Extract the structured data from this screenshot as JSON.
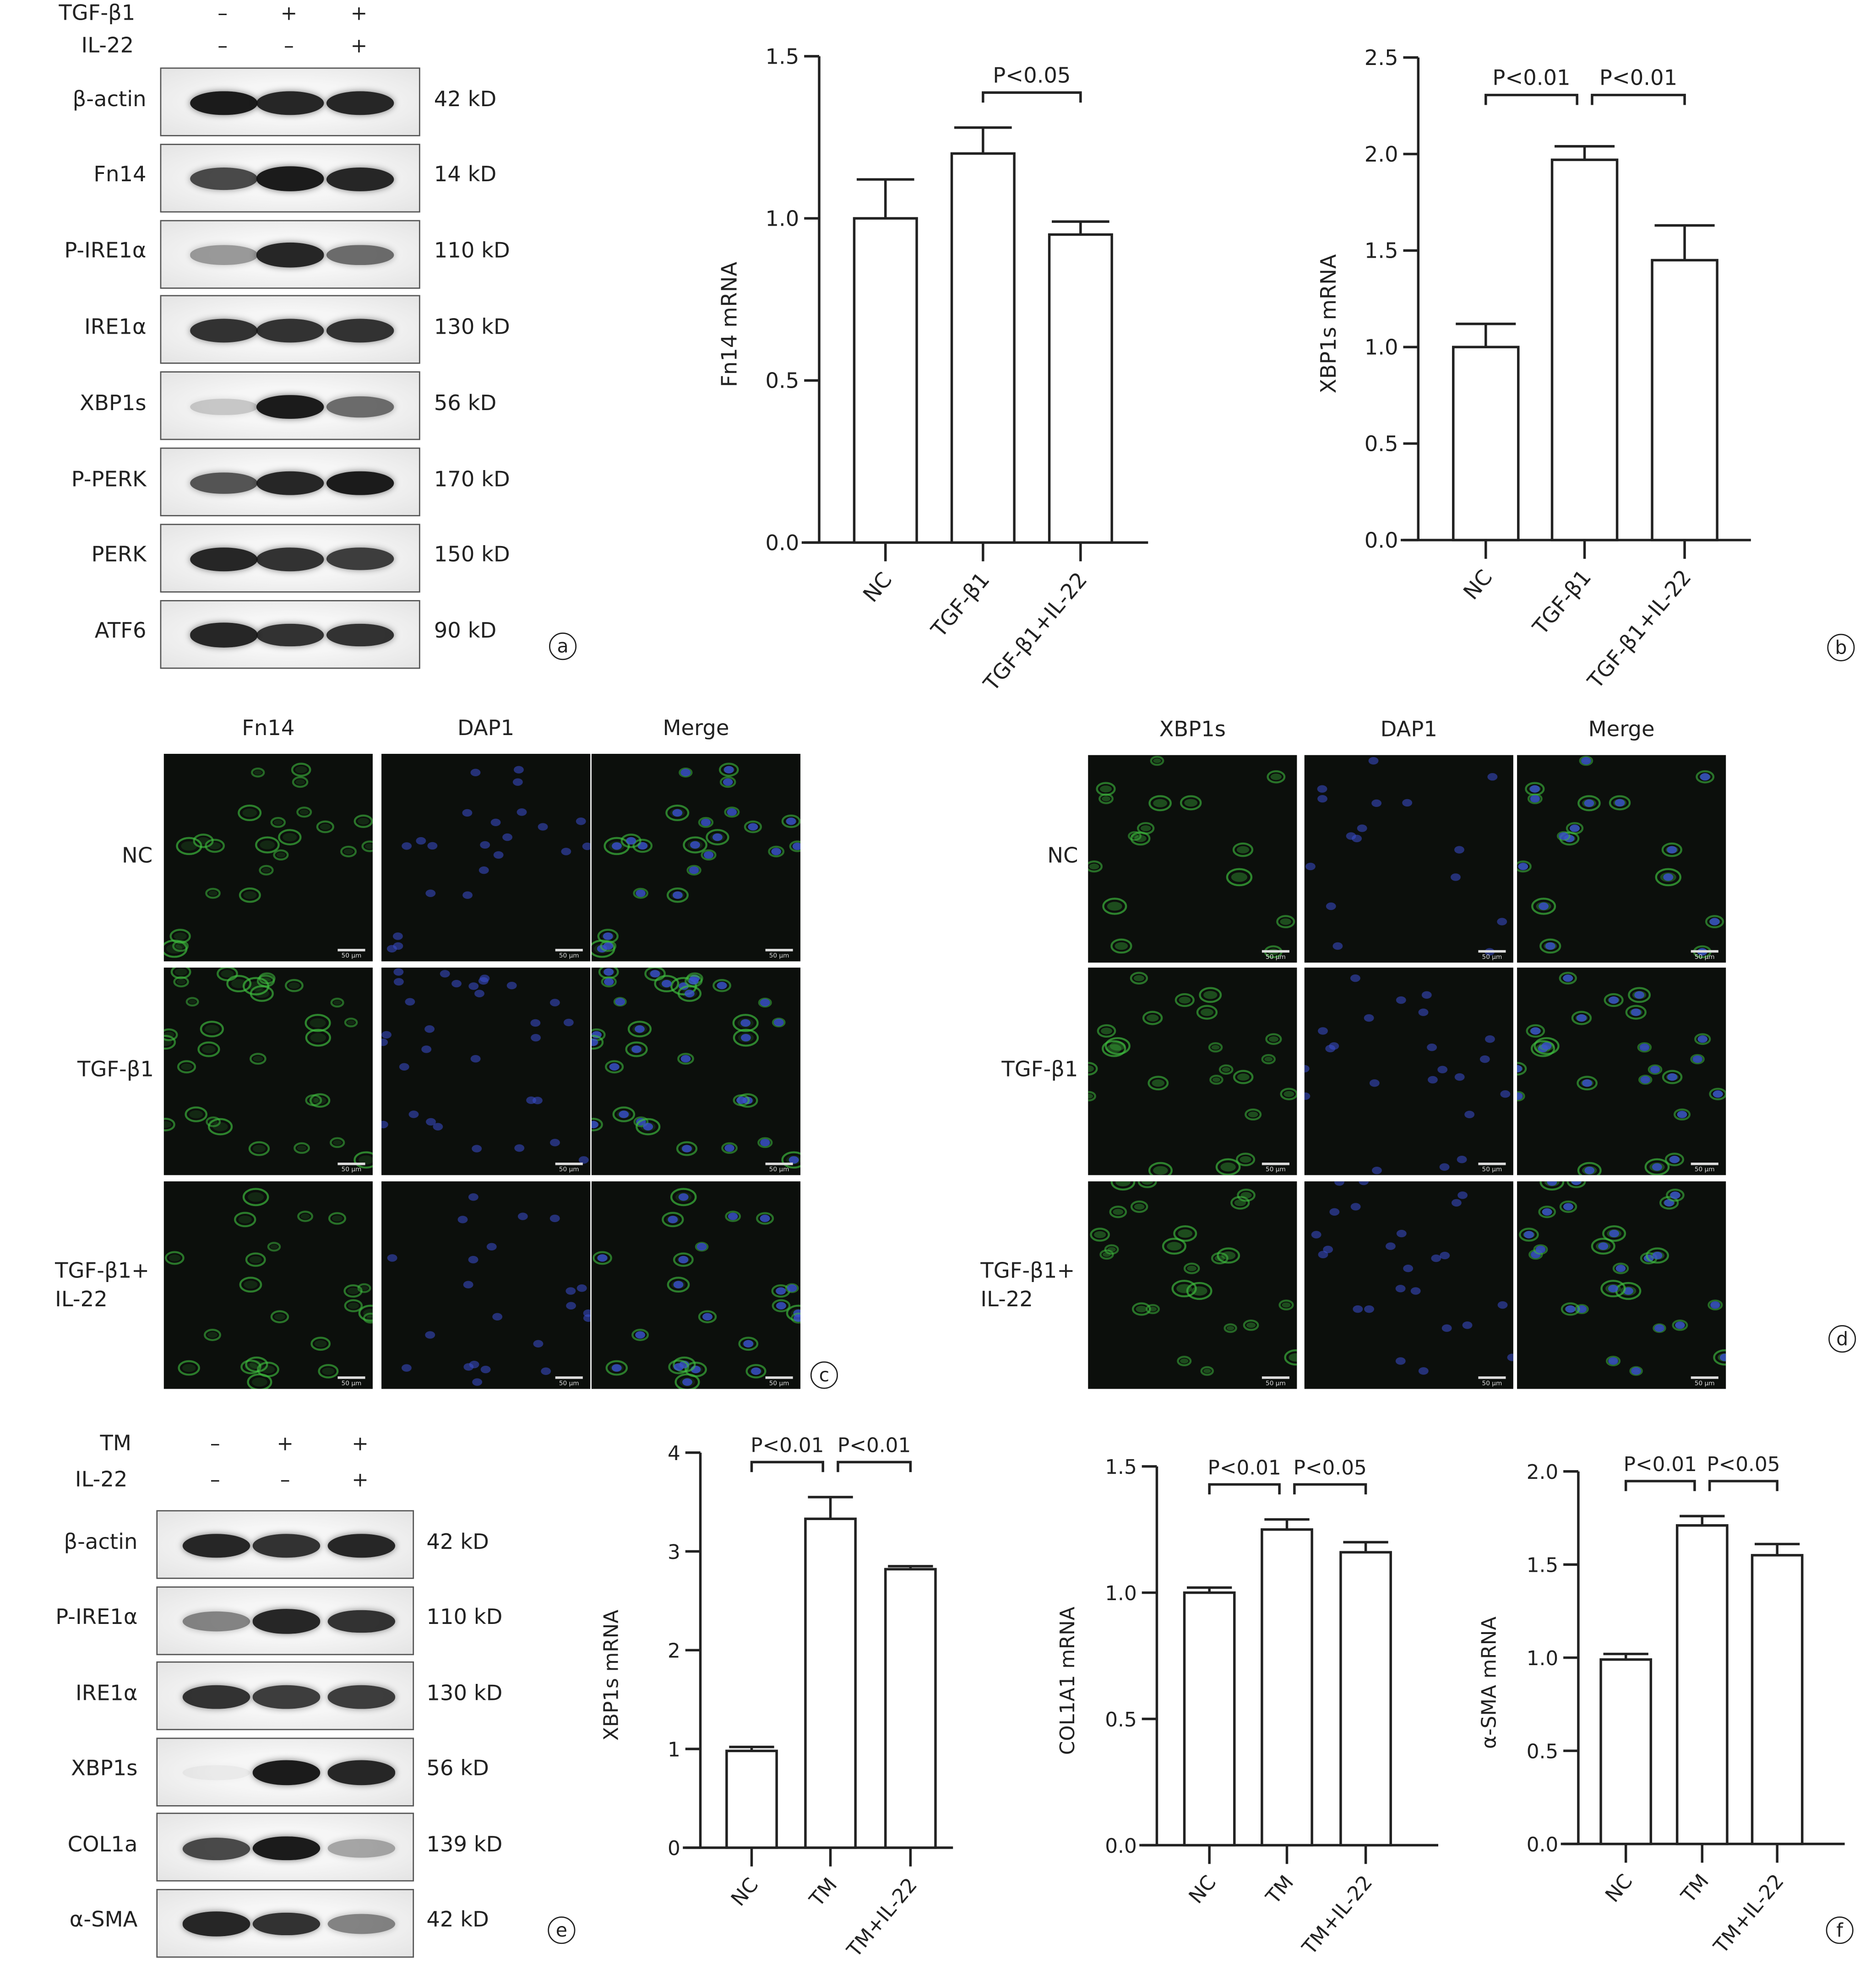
{
  "panel_labels": {
    "a": "a",
    "b": "b",
    "c": "c",
    "d": "d",
    "e": "e",
    "f": "f"
  },
  "blot_a": {
    "header": [
      {
        "label": "TGF-β1",
        "signs": [
          "–",
          "+",
          "+"
        ]
      },
      {
        "label": "IL-22",
        "signs": [
          "–",
          "–",
          "+"
        ]
      }
    ],
    "rows": [
      {
        "protein": "β-actin",
        "size": "42 kD",
        "bands": [
          0.95,
          0.9,
          0.9
        ]
      },
      {
        "protein": "Fn14",
        "size": "14 kD",
        "bands": [
          0.75,
          0.95,
          0.9
        ]
      },
      {
        "protein": "P-IRE1α",
        "size": "110 kD",
        "bands": [
          0.4,
          0.9,
          0.6
        ]
      },
      {
        "protein": "IRE1α",
        "size": "130 kD",
        "bands": [
          0.85,
          0.85,
          0.85
        ]
      },
      {
        "protein": "XBP1s",
        "size": "56 kD",
        "bands": [
          0.2,
          0.95,
          0.6
        ]
      },
      {
        "protein": "P-PERK",
        "size": "170 kD",
        "bands": [
          0.7,
          0.9,
          0.95
        ]
      },
      {
        "protein": "PERK",
        "size": "150 kD",
        "bands": [
          0.9,
          0.85,
          0.8
        ]
      },
      {
        "protein": "ATF6",
        "size": "90 kD",
        "bands": [
          0.9,
          0.85,
          0.85
        ]
      }
    ]
  },
  "blot_e": {
    "header": [
      {
        "label": "TM",
        "signs": [
          "–",
          "+",
          "+"
        ]
      },
      {
        "label": "IL-22",
        "signs": [
          "–",
          "–",
          "+"
        ]
      }
    ],
    "rows": [
      {
        "protein": "β-actin",
        "size": "42 kD",
        "bands": [
          0.9,
          0.85,
          0.9
        ]
      },
      {
        "protein": "P-IRE1α",
        "size": "110 kD",
        "bands": [
          0.5,
          0.9,
          0.85
        ]
      },
      {
        "protein": "IRE1α",
        "size": "130 kD",
        "bands": [
          0.85,
          0.8,
          0.8
        ]
      },
      {
        "protein": "XBP1s",
        "size": "56 kD",
        "bands": [
          0.05,
          0.95,
          0.9
        ]
      },
      {
        "protein": "COL1a",
        "size": "139 kD",
        "bands": [
          0.75,
          0.95,
          0.35
        ]
      },
      {
        "protein": "α-SMA",
        "size": "42 kD",
        "bands": [
          0.9,
          0.85,
          0.5
        ]
      }
    ]
  },
  "if_c": {
    "columns": [
      "Fn14",
      "DAP1",
      "Merge"
    ],
    "rows": [
      "NC",
      "TGF-β1",
      "TGF-β1+\nIL-22"
    ],
    "scale_bar": "50 μm"
  },
  "if_d": {
    "columns": [
      "XBP1s",
      "DAP1",
      "Merge"
    ],
    "rows": [
      "NC",
      "TGF-β1",
      "TGF-β1+\nIL-22"
    ],
    "scale_bar": "50 μm"
  },
  "colors": {
    "green_channel": "#3fbf3f",
    "blue_channel": "#3a4fd0",
    "axis": "#222222"
  },
  "chart_data": [
    {
      "type": "bar",
      "panel": "a",
      "categories": [
        "NC",
        "TGF-β1",
        "TGF-β1+IL-22"
      ],
      "values": [
        1.0,
        1.2,
        0.95
      ],
      "error_upper": [
        1.12,
        1.28,
        0.99
      ],
      "ylabel": "Fn14 mRNA",
      "ylim": [
        0,
        1.5
      ],
      "yticks": [
        "0.0",
        "0.5",
        "1.0",
        "1.5"
      ],
      "grid": false,
      "significance": [
        {
          "from": 1,
          "to": 2,
          "label": "P<0.05"
        }
      ]
    },
    {
      "type": "bar",
      "panel": "b",
      "categories": [
        "NC",
        "TGF-β1",
        "TGF-β1+IL-22"
      ],
      "values": [
        1.0,
        1.97,
        1.45
      ],
      "error_upper": [
        1.12,
        2.04,
        1.63
      ],
      "ylabel": "XBP1s mRNA",
      "ylim": [
        0,
        2.5
      ],
      "yticks": [
        "0.0",
        "0.5",
        "1.0",
        "1.5",
        "2.0",
        "2.5"
      ],
      "grid": false,
      "significance": [
        {
          "from": 0,
          "to": 1,
          "label": "P<0.01"
        },
        {
          "from": 1,
          "to": 2,
          "label": "P<0.01"
        }
      ]
    },
    {
      "type": "bar",
      "panel": "f",
      "categories": [
        "NC",
        "TM",
        "TM+IL-22"
      ],
      "values": [
        0.98,
        3.33,
        2.82
      ],
      "error_upper": [
        1.02,
        3.55,
        2.85
      ],
      "ylabel": "XBP1s mRNA",
      "ylim": [
        0,
        4
      ],
      "yticks": [
        "0",
        "1",
        "2",
        "3",
        "4"
      ],
      "grid": false,
      "significance": [
        {
          "from": 0,
          "to": 1,
          "label": "P<0.01"
        },
        {
          "from": 1,
          "to": 2,
          "label": "P<0.01"
        }
      ]
    },
    {
      "type": "bar",
      "panel": "f",
      "categories": [
        "NC",
        "TM",
        "TM+IL-22"
      ],
      "values": [
        1.0,
        1.25,
        1.16
      ],
      "error_upper": [
        1.02,
        1.29,
        1.2
      ],
      "ylabel": "COL1A1 mRNA",
      "ylim": [
        0,
        1.5
      ],
      "yticks": [
        "0.0",
        "0.5",
        "1.0",
        "1.5"
      ],
      "grid": false,
      "significance": [
        {
          "from": 0,
          "to": 1,
          "label": "P<0.01"
        },
        {
          "from": 1,
          "to": 2,
          "label": "P<0.05"
        }
      ]
    },
    {
      "type": "bar",
      "panel": "f",
      "categories": [
        "NC",
        "TM",
        "TM+IL-22"
      ],
      "values": [
        0.99,
        1.71,
        1.55
      ],
      "error_upper": [
        1.02,
        1.76,
        1.61
      ],
      "ylabel": "α-SMA mRNA",
      "ylim": [
        0,
        2.0
      ],
      "yticks": [
        "0.0",
        "0.5",
        "1.0",
        "1.5",
        "2.0"
      ],
      "grid": false,
      "significance": [
        {
          "from": 0,
          "to": 1,
          "label": "P<0.01"
        },
        {
          "from": 1,
          "to": 2,
          "label": "P<0.05"
        }
      ]
    }
  ]
}
